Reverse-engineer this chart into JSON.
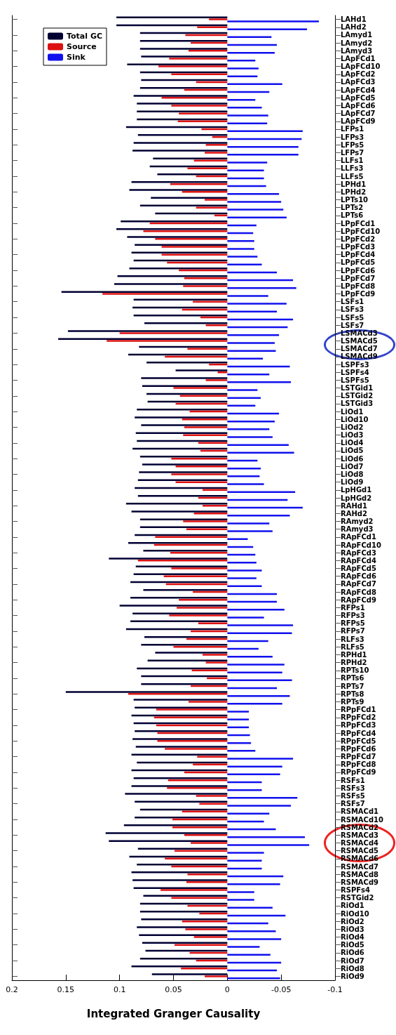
{
  "chart_data": {
    "type": "bar",
    "orientation": "horizontal",
    "xlabel": "Integrated Granger Causality",
    "categories": [
      "LAHd1",
      "LAHd2",
      "LAmyd1",
      "LAmyd2",
      "LAmyd3",
      "LApFCd1",
      "LApFCd10",
      "LApFCd2",
      "LApFCd3",
      "LApFCd4",
      "LApFCd5",
      "LApFCd6",
      "LApFCd7",
      "LApFCd9",
      "LFPs1",
      "LFPs3",
      "LFPs5",
      "LFPs7",
      "LLFs1",
      "LLFs3",
      "LLFs5",
      "LPHd1",
      "LPHd2",
      "LPTs10",
      "LPTs2",
      "LPTs6",
      "LPpFCd1",
      "LPpFCd10",
      "LPpFCd2",
      "LPpFCd3",
      "LPpFCd4",
      "LPpFCd5",
      "LPpFCd6",
      "LPpFCd7",
      "LPpFCd8",
      "LPpFCd9",
      "LSFs1",
      "LSFs3",
      "LSFs5",
      "LSFs7",
      "LSMACd3",
      "LSMACd5",
      "LSMACd7",
      "LSMACd9",
      "LSPFs3",
      "LSPFs4",
      "LSPFs5",
      "LSTGid1",
      "LSTGid2",
      "LSTGid3",
      "LiOd1",
      "LiOd10",
      "LiOd2",
      "LiOd3",
      "LiOd4",
      "LiOd5",
      "LiOd6",
      "LiOd7",
      "LiOd8",
      "LiOd9",
      "LpHGd1",
      "LpHGd2",
      "RAHd1",
      "RAHd2",
      "RAmyd2",
      "RAmyd3",
      "RApFCd1",
      "RApFCd10",
      "RApFCd3",
      "RApFCd4",
      "RApFCd5",
      "RApFCd6",
      "RApFCd7",
      "RApFCd8",
      "RApFCd9",
      "RFPs1",
      "RFPs3",
      "RFPs5",
      "RFPs7",
      "RLFs3",
      "RLFs5",
      "RPHd1",
      "RPHd2",
      "RPTs10",
      "RPTs6",
      "RPTs7",
      "RPTs8",
      "RPTs9",
      "RPpFCd1",
      "RPpFCd2",
      "RPpFCd3",
      "RPpFCd4",
      "RPpFCd5",
      "RPpFCd6",
      "RPpFCd7",
      "RPpFCd8",
      "RPpFCd9",
      "RSFs1",
      "RSFs3",
      "RSFs5",
      "RSFs7",
      "RSMACd1",
      "RSMACd10",
      "RSMACd2",
      "RSMACd3",
      "RSMACd4",
      "RSMACd5",
      "RSMACd6",
      "RSMACd7",
      "RSMACd8",
      "RSMACd9",
      "RSPFs4",
      "RSTGid2",
      "RiOd1",
      "RiOd10",
      "RiOd2",
      "RiOd3",
      "RiOd4",
      "RiOd5",
      "RiOd6",
      "RiOd7",
      "RiOd8",
      "RiOd9"
    ],
    "series": [
      {
        "name": "Total GC",
        "color": "#000033",
        "values": [
          0.103,
          0.103,
          0.081,
          0.081,
          0.081,
          0.08,
          0.093,
          0.081,
          0.08,
          0.081,
          0.087,
          0.084,
          0.084,
          0.084,
          0.094,
          0.083,
          0.087,
          0.088,
          0.069,
          0.072,
          0.065,
          0.089,
          0.091,
          0.071,
          0.081,
          0.067,
          0.099,
          0.103,
          0.093,
          0.086,
          0.089,
          0.087,
          0.091,
          0.102,
          0.105,
          0.154,
          0.087,
          0.088,
          0.087,
          0.077,
          0.148,
          0.157,
          0.082,
          0.092,
          0.075,
          0.048,
          0.08,
          0.079,
          0.075,
          0.074,
          0.084,
          0.086,
          0.08,
          0.085,
          0.084,
          0.088,
          0.081,
          0.079,
          0.082,
          0.083,
          0.086,
          0.083,
          0.094,
          0.089,
          0.081,
          0.081,
          0.086,
          0.092,
          0.078,
          0.11,
          0.085,
          0.087,
          0.09,
          0.078,
          0.09,
          0.1,
          0.088,
          0.09,
          0.094,
          0.077,
          0.08,
          0.067,
          0.074,
          0.084,
          0.08,
          0.08,
          0.15,
          0.087,
          0.086,
          0.089,
          0.087,
          0.086,
          0.088,
          0.085,
          0.089,
          0.084,
          0.089,
          0.087,
          0.089,
          0.095,
          0.086,
          0.081,
          0.086,
          0.096,
          0.113,
          0.11,
          0.083,
          0.091,
          0.084,
          0.089,
          0.088,
          0.087,
          0.078,
          0.081,
          0.081,
          0.08,
          0.084,
          0.082,
          0.079,
          0.076,
          0.081,
          0.089,
          0.07
        ]
      },
      {
        "name": "Source",
        "color": "#dd1111",
        "values": [
          0.017,
          0.028,
          0.039,
          0.034,
          0.036,
          0.054,
          0.064,
          0.052,
          0.029,
          0.04,
          0.061,
          0.052,
          0.045,
          0.046,
          0.024,
          0.014,
          0.02,
          0.021,
          0.031,
          0.037,
          0.029,
          0.053,
          0.042,
          0.021,
          0.029,
          0.012,
          0.072,
          0.078,
          0.067,
          0.061,
          0.061,
          0.056,
          0.045,
          0.04,
          0.041,
          0.116,
          0.032,
          0.042,
          0.025,
          0.02,
          0.1,
          0.112,
          0.037,
          0.058,
          0.017,
          0.009,
          0.02,
          0.05,
          0.044,
          0.048,
          0.035,
          0.042,
          0.04,
          0.041,
          0.027,
          0.025,
          0.052,
          0.048,
          0.052,
          0.048,
          0.023,
          0.027,
          0.023,
          0.031,
          0.041,
          0.038,
          0.067,
          0.068,
          0.053,
          0.083,
          0.052,
          0.059,
          0.057,
          0.032,
          0.045,
          0.047,
          0.054,
          0.027,
          0.034,
          0.038,
          0.05,
          0.023,
          0.02,
          0.033,
          0.019,
          0.034,
          0.092,
          0.036,
          0.066,
          0.068,
          0.066,
          0.065,
          0.065,
          0.058,
          0.028,
          0.032,
          0.04,
          0.055,
          0.056,
          0.029,
          0.026,
          0.042,
          0.051,
          0.051,
          0.04,
          0.034,
          0.049,
          0.058,
          0.052,
          0.037,
          0.038,
          0.062,
          0.052,
          0.037,
          0.026,
          0.042,
          0.039,
          0.031,
          0.049,
          0.035,
          0.029,
          0.043,
          0.021
        ]
      },
      {
        "name": "Sink",
        "color": "#1111ee",
        "values": [
          -0.085,
          -0.074,
          -0.041,
          -0.046,
          -0.044,
          -0.026,
          -0.029,
          -0.028,
          -0.051,
          -0.039,
          -0.026,
          -0.032,
          -0.038,
          -0.037,
          -0.07,
          -0.069,
          -0.066,
          -0.066,
          -0.037,
          -0.034,
          -0.034,
          -0.036,
          -0.048,
          -0.05,
          -0.052,
          -0.055,
          -0.027,
          -0.024,
          -0.025,
          -0.025,
          -0.028,
          -0.032,
          -0.046,
          -0.061,
          -0.064,
          -0.038,
          -0.055,
          -0.046,
          -0.061,
          -0.056,
          -0.048,
          -0.044,
          -0.045,
          -0.033,
          -0.058,
          -0.039,
          -0.059,
          -0.028,
          -0.031,
          -0.026,
          -0.048,
          -0.044,
          -0.039,
          -0.042,
          -0.057,
          -0.062,
          -0.028,
          -0.031,
          -0.03,
          -0.034,
          -0.063,
          -0.056,
          -0.07,
          -0.058,
          -0.039,
          -0.042,
          -0.019,
          -0.024,
          -0.026,
          -0.027,
          -0.032,
          -0.027,
          -0.032,
          -0.046,
          -0.046,
          -0.053,
          -0.034,
          -0.061,
          -0.06,
          -0.038,
          -0.029,
          -0.042,
          -0.053,
          -0.051,
          -0.06,
          -0.046,
          -0.058,
          -0.051,
          -0.02,
          -0.02,
          -0.02,
          -0.021,
          -0.022,
          -0.026,
          -0.061,
          -0.051,
          -0.049,
          -0.032,
          -0.032,
          -0.065,
          -0.059,
          -0.039,
          -0.034,
          -0.045,
          -0.072,
          -0.076,
          -0.034,
          -0.032,
          -0.032,
          -0.052,
          -0.049,
          -0.025,
          -0.025,
          -0.042,
          -0.054,
          -0.038,
          -0.045,
          -0.05,
          -0.03,
          -0.04,
          -0.05,
          -0.046,
          -0.049
        ]
      }
    ],
    "xlim": [
      0.2,
      -0.1
    ],
    "xticks": [
      0.2,
      0.15,
      0.1,
      0.05,
      0,
      -0.05,
      -0.1
    ],
    "grid": false,
    "legend": "top left"
  }
}
